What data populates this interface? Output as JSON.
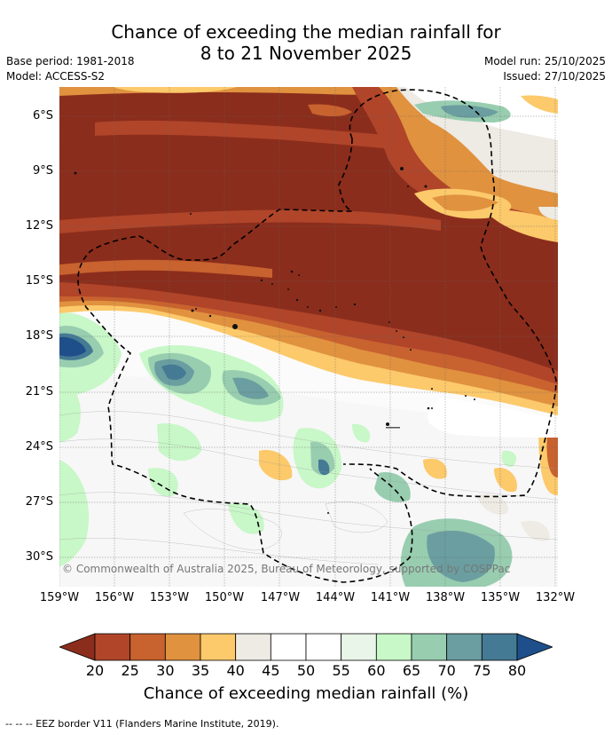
{
  "title": {
    "line1": "Chance of exceeding the median rainfall for",
    "line2": "8 to 21 November 2025"
  },
  "meta": {
    "base_period": "Base period: 1981-2018",
    "model": "Model: ACCESS-S2",
    "model_run": "Model run: 25/10/2025",
    "issued": "Issued: 27/10/2025"
  },
  "map": {
    "lat_labels": [
      "6°S",
      "9°S",
      "12°S",
      "15°S",
      "18°S",
      "21°S",
      "24°S",
      "27°S",
      "30°S"
    ],
    "lon_labels": [
      "159°W",
      "156°W",
      "153°W",
      "150°W",
      "147°W",
      "144°W",
      "141°W",
      "138°W",
      "135°W",
      "132°W"
    ],
    "copyright": "© Commonwealth of Australia 2025, Bureau of Meteorology, supported by COSPPac"
  },
  "colorbar": {
    "colors": [
      "#8b2d1c",
      "#b0452a",
      "#c8622f",
      "#e0923f",
      "#fcc96b",
      "#eeeae4",
      "#ffffff",
      "#ffffff",
      "#e8f5e8",
      "#c8f7c8",
      "#98cdb0",
      "#6a9ea0",
      "#457a94",
      "#1e4f8a"
    ],
    "ticks": [
      "20",
      "25",
      "30",
      "35",
      "40",
      "45",
      "50",
      "55",
      "60",
      "65",
      "70",
      "75",
      "80"
    ],
    "label": "Chance of exceeding median rainfall (%)"
  },
  "legend_note": "--  --  -- EEZ border V11 (Flanders Marine Institute, 2019)."
}
